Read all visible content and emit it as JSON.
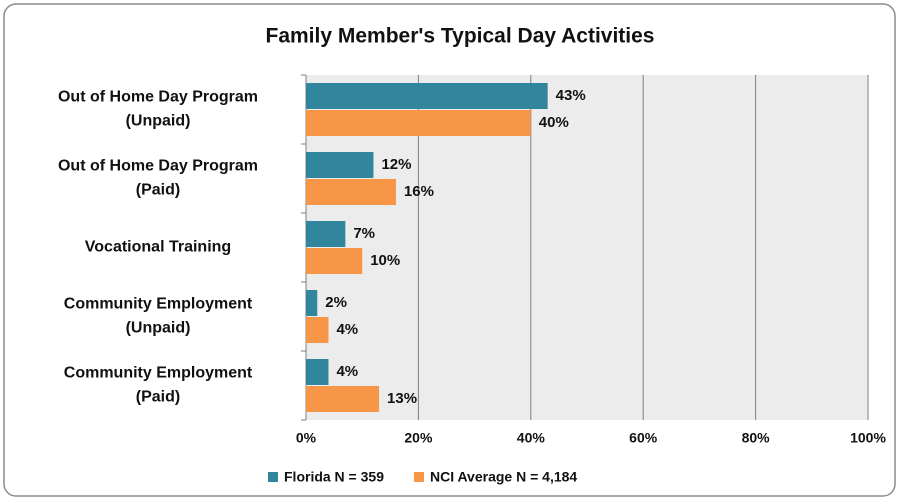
{
  "chart_data": {
    "type": "bar",
    "orientation": "horizontal",
    "title": "Family Member's Typical Day Activities",
    "categories": [
      [
        "Out of Home Day Program",
        "(Unpaid)"
      ],
      [
        "Out of Home Day Program",
        "(Paid)"
      ],
      [
        "Vocational Training"
      ],
      [
        "Community Employment",
        "(Unpaid)"
      ],
      [
        "Community Employment",
        "(Paid)"
      ]
    ],
    "series": [
      {
        "name": "Florida N = 359",
        "color": "#31859c",
        "values": [
          43,
          12,
          7,
          2,
          4
        ],
        "value_labels": [
          "43%",
          "12%",
          "7%",
          "2%",
          "4%"
        ]
      },
      {
        "name": "NCI Average N = 4,184",
        "color": "#f79646",
        "values": [
          40,
          16,
          10,
          4,
          13
        ],
        "value_labels": [
          "40%",
          "16%",
          "10%",
          "4%",
          "13%"
        ]
      }
    ],
    "xlim": [
      0,
      100
    ],
    "xticks": [
      {
        "value": 0,
        "label": "0%"
      },
      {
        "value": 20,
        "label": "20%"
      },
      {
        "value": 40,
        "label": "40%"
      },
      {
        "value": 60,
        "label": "60%"
      },
      {
        "value": 80,
        "label": "80%"
      },
      {
        "value": 100,
        "label": "100%"
      }
    ],
    "grid": true,
    "legend": "bottom"
  }
}
